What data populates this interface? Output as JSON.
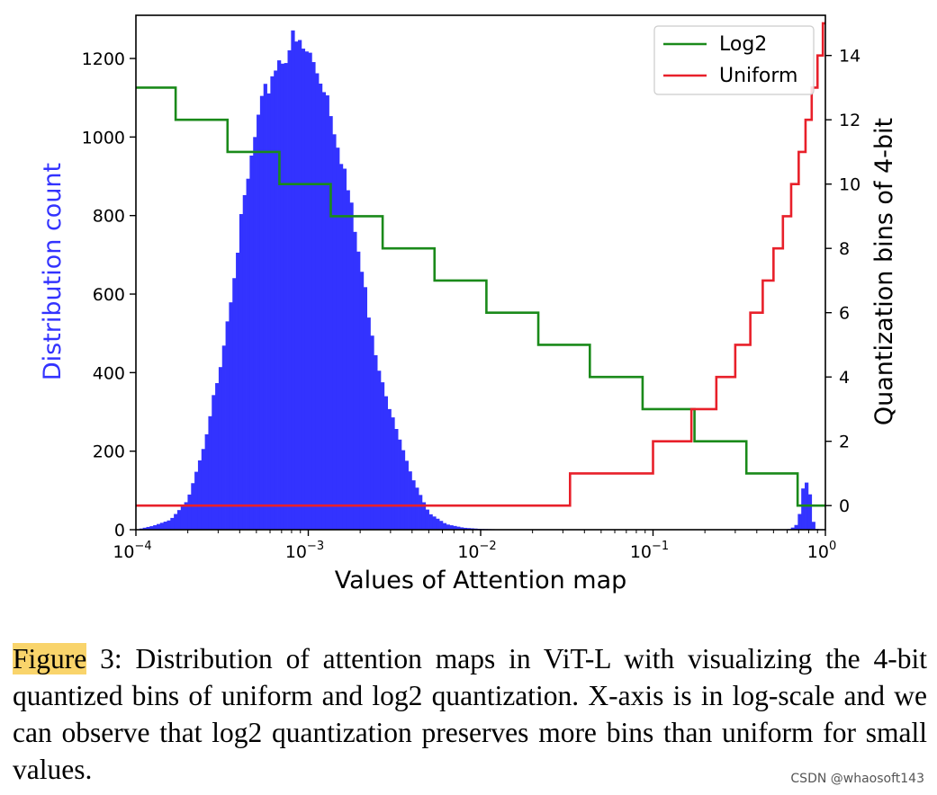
{
  "chart_data": {
    "type": "histogram_with_step_lines",
    "xscale": "log",
    "xlim": [
      0.0001,
      1
    ],
    "x_ticks": [
      {
        "value": 0.0001,
        "base": "10",
        "exp": "−4"
      },
      {
        "value": 0.001,
        "base": "10",
        "exp": "−3"
      },
      {
        "value": 0.01,
        "base": "10",
        "exp": "−2"
      },
      {
        "value": 0.1,
        "base": "10",
        "exp": "−1"
      },
      {
        "value": 1,
        "base": "10",
        "exp": "0"
      }
    ],
    "xlabel": "Values of Attention map",
    "ylabel_left": "Distribution count",
    "ylabel_right": "Quantization bins of 4-bit",
    "ylim_left": [
      0,
      1310
    ],
    "yticks_left": [
      "0",
      "200",
      "400",
      "600",
      "800",
      "1000",
      "1200"
    ],
    "ylim_right": [
      -0.75,
      15.25
    ],
    "yticks_right": [
      "0",
      "2",
      "4",
      "6",
      "8",
      "10",
      "12",
      "14"
    ],
    "histogram": {
      "name": "Distribution count",
      "color": "#3333ff",
      "log10_x": [
        -4.0,
        -3.9,
        -3.8,
        -3.7,
        -3.6,
        -3.5,
        -3.4,
        -3.3,
        -3.2,
        -3.1,
        -3.0,
        -2.9,
        -2.8,
        -2.7,
        -2.6,
        -2.5,
        -2.4,
        -2.3,
        -2.2,
        -2.1,
        -2.0,
        -1.9,
        -1.8,
        -1.7,
        -1.6,
        -1.5,
        -0.25,
        -0.2,
        -0.17,
        -0.15,
        -0.13,
        -0.11,
        -0.09,
        -0.07,
        -0.05,
        0.0
      ],
      "count": [
        0,
        10,
        25,
        75,
        220,
        450,
        750,
        1020,
        1180,
        1240,
        1210,
        1130,
        940,
        680,
        430,
        270,
        135,
        42,
        14,
        5,
        2,
        1,
        0,
        0,
        0,
        0,
        0,
        2,
        12,
        40,
        105,
        120,
        90,
        20,
        2,
        0
      ]
    },
    "series": [
      {
        "name": "Log2",
        "color": "#1a8a1a",
        "steps": [
          {
            "from": 0.0001,
            "to": 0.00017,
            "bin": 13
          },
          {
            "from": 0.00017,
            "to": 0.00034,
            "bin": 12
          },
          {
            "from": 0.00034,
            "to": 0.00068,
            "bin": 11
          },
          {
            "from": 0.00068,
            "to": 0.00135,
            "bin": 10
          },
          {
            "from": 0.00135,
            "to": 0.0027,
            "bin": 9
          },
          {
            "from": 0.0027,
            "to": 0.0054,
            "bin": 8
          },
          {
            "from": 0.0054,
            "to": 0.0108,
            "bin": 7
          },
          {
            "from": 0.0108,
            "to": 0.0216,
            "bin": 6
          },
          {
            "from": 0.0216,
            "to": 0.043,
            "bin": 5
          },
          {
            "from": 0.043,
            "to": 0.087,
            "bin": 4
          },
          {
            "from": 0.087,
            "to": 0.174,
            "bin": 3
          },
          {
            "from": 0.174,
            "to": 0.348,
            "bin": 2
          },
          {
            "from": 0.348,
            "to": 0.69,
            "bin": 1
          },
          {
            "from": 0.69,
            "to": 1.0,
            "bin": 0
          }
        ]
      },
      {
        "name": "Uniform",
        "color": "#e8202a",
        "steps": [
          {
            "from": 0.0001,
            "to": 0.033,
            "bin": 0
          },
          {
            "from": 0.033,
            "to": 0.1,
            "bin": 1
          },
          {
            "from": 0.1,
            "to": 0.167,
            "bin": 2
          },
          {
            "from": 0.167,
            "to": 0.233,
            "bin": 3
          },
          {
            "from": 0.233,
            "to": 0.3,
            "bin": 4
          },
          {
            "from": 0.3,
            "to": 0.367,
            "bin": 5
          },
          {
            "from": 0.367,
            "to": 0.433,
            "bin": 6
          },
          {
            "from": 0.433,
            "to": 0.5,
            "bin": 7
          },
          {
            "from": 0.5,
            "to": 0.567,
            "bin": 8
          },
          {
            "from": 0.567,
            "to": 0.633,
            "bin": 9
          },
          {
            "from": 0.633,
            "to": 0.7,
            "bin": 10
          },
          {
            "from": 0.7,
            "to": 0.767,
            "bin": 11
          },
          {
            "from": 0.767,
            "to": 0.833,
            "bin": 12
          },
          {
            "from": 0.833,
            "to": 0.9,
            "bin": 13
          },
          {
            "from": 0.9,
            "to": 0.967,
            "bin": 14
          },
          {
            "from": 0.967,
            "to": 1.0,
            "bin": 15
          }
        ]
      }
    ],
    "legend": {
      "position": "top-right",
      "entries": [
        "Log2",
        "Uniform"
      ]
    }
  },
  "caption": {
    "label": "Figure",
    "text": " 3: Distribution of attention maps in ViT-L with visualizing the 4-bit quantized bins of uniform and log2 quantization.  X-axis is in log-scale and we can observe that log2 quantization preserves more bins than uniform for small values."
  },
  "watermark": "CSDN @whaosoft143"
}
